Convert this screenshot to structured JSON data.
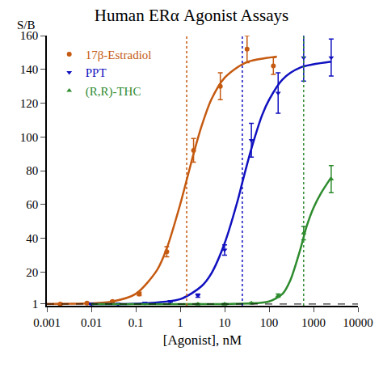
{
  "chart_data": {
    "type": "scatter",
    "title": "Human ERα Agonist Assays",
    "x_label": "[Agonist], nM",
    "y_label": "S/B",
    "log": "x",
    "grid": false,
    "legend": "upper left",
    "xlim": [
      0.001,
      10000
    ],
    "xticks": [
      0.001,
      0.01,
      0.1,
      1,
      10,
      100,
      1000,
      10000
    ],
    "ylim": [
      0,
      160
    ],
    "yticks": [
      1,
      20,
      40,
      60,
      80,
      100,
      120,
      140,
      160
    ],
    "baseline": 1,
    "series": [
      {
        "name": "17β-Estradiol",
        "color": "#c55a11",
        "marker": "circle",
        "x": [
          0.002,
          0.008,
          0.03,
          0.12,
          0.5,
          2,
          8,
          32,
          125
        ],
        "values": [
          1,
          1.5,
          2.5,
          7,
          32,
          92,
          130,
          152,
          142
        ],
        "error": [
          0.3,
          0.3,
          0.5,
          1,
          3,
          7,
          8,
          8,
          5
        ],
        "ec50": 1.4,
        "curve": {
          "x": [
            0.001,
            0.01,
            0.03,
            0.1,
            0.3,
            0.5,
            1,
            1.5,
            2,
            3,
            5,
            10,
            30,
            150
          ],
          "values": [
            1.1,
            1.4,
            2.5,
            7,
            21,
            34,
            60,
            77.5,
            90,
            106,
            122,
            135,
            144,
            147.5
          ]
        }
      },
      {
        "name": "PPT",
        "color": "#1010c0",
        "marker": "triangle-down",
        "x": [
          0.01,
          0.04,
          0.16,
          0.6,
          2.5,
          10,
          40,
          160,
          600,
          2500
        ],
        "values": [
          1,
          1,
          1.5,
          2.5,
          6,
          33,
          98,
          126,
          147,
          147
        ],
        "error": [
          0.3,
          0.3,
          0.3,
          0.5,
          1,
          3,
          10,
          12,
          14,
          11
        ],
        "ec50": 25,
        "curve": {
          "x": [
            0.01,
            0.1,
            1,
            3,
            5,
            10,
            20,
            25,
            40,
            70,
            100,
            200,
            500,
            2500
          ],
          "values": [
            1,
            1.2,
            3.9,
            11.5,
            19,
            37,
            63,
            73,
            93,
            113,
            122,
            134,
            141,
            144.5
          ]
        }
      },
      {
        "name": "(R,R)-THC",
        "color": "#2e8b2e",
        "marker": "triangle-up",
        "x": [
          2.5,
          10,
          40,
          160,
          600,
          2500
        ],
        "values": [
          1,
          1,
          1.5,
          6,
          43,
          75
        ],
        "error": [
          0.3,
          0.3,
          0.3,
          1,
          4,
          8
        ],
        "ec50": 600,
        "curve": {
          "x": [
            0.01,
            10,
            50,
            100,
            200,
            300,
            500,
            700,
            1000,
            1500,
            2500
          ],
          "values": [
            1,
            1,
            1.5,
            2.5,
            7,
            15,
            33,
            47,
            58,
            67,
            76
          ]
        }
      }
    ]
  }
}
